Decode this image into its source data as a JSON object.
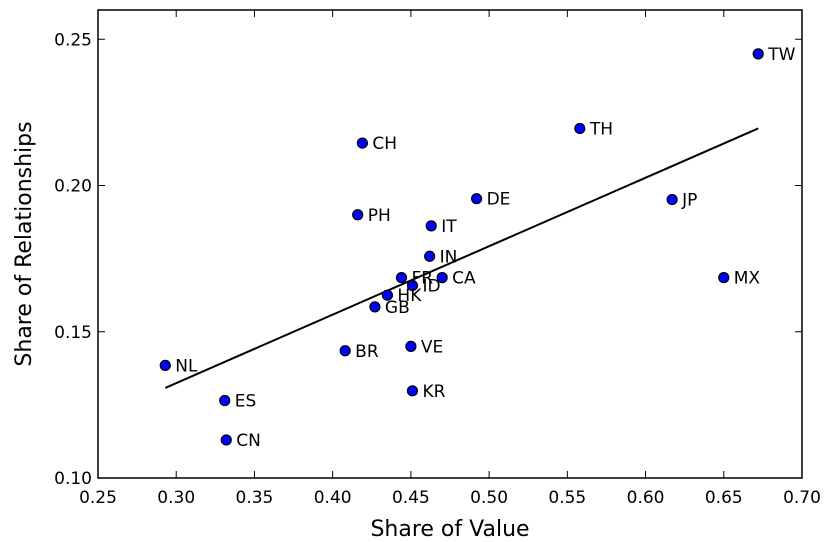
{
  "chart_data": {
    "type": "scatter",
    "xlabel": "Share of Value",
    "ylabel": "Share of Relationships",
    "xlim": [
      0.25,
      0.7
    ],
    "ylim": [
      0.1,
      0.26
    ],
    "xticks": [
      0.25,
      0.3,
      0.35,
      0.4,
      0.45,
      0.5,
      0.55,
      0.6,
      0.65,
      0.7
    ],
    "xtick_labels": [
      "0.25",
      "0.30",
      "0.35",
      "0.40",
      "0.45",
      "0.50",
      "0.55",
      "0.60",
      "0.65",
      "0.70"
    ],
    "yticks": [
      0.1,
      0.15,
      0.2,
      0.25
    ],
    "ytick_labels": [
      "0.10",
      "0.15",
      "0.20",
      "0.25"
    ],
    "grid": false,
    "marker_color": "#0000ff",
    "points": [
      {
        "label": "TW",
        "x": 0.672,
        "y": 0.245
      },
      {
        "label": "TH",
        "x": 0.558,
        "y": 0.2195
      },
      {
        "label": "CH",
        "x": 0.419,
        "y": 0.2145
      },
      {
        "label": "DE",
        "x": 0.492,
        "y": 0.1955
      },
      {
        "label": "JP",
        "x": 0.617,
        "y": 0.1952
      },
      {
        "label": "PH",
        "x": 0.416,
        "y": 0.19
      },
      {
        "label": "IT",
        "x": 0.463,
        "y": 0.1862
      },
      {
        "label": "IN",
        "x": 0.462,
        "y": 0.1758
      },
      {
        "label": "FR",
        "x": 0.444,
        "y": 0.1685
      },
      {
        "label": "CA",
        "x": 0.47,
        "y": 0.1685
      },
      {
        "label": "MX",
        "x": 0.65,
        "y": 0.1685
      },
      {
        "label": "ID",
        "x": 0.451,
        "y": 0.1658
      },
      {
        "label": "HK",
        "x": 0.435,
        "y": 0.1625
      },
      {
        "label": "GB",
        "x": 0.427,
        "y": 0.1585
      },
      {
        "label": "VE",
        "x": 0.45,
        "y": 0.145
      },
      {
        "label": "BR",
        "x": 0.408,
        "y": 0.1435
      },
      {
        "label": "NL",
        "x": 0.293,
        "y": 0.1385
      },
      {
        "label": "KR",
        "x": 0.451,
        "y": 0.1298
      },
      {
        "label": "ES",
        "x": 0.331,
        "y": 0.1265
      },
      {
        "label": "CN",
        "x": 0.332,
        "y": 0.113
      }
    ],
    "trendline": {
      "x": [
        0.293,
        0.672
      ],
      "y": [
        0.1308,
        0.2195
      ]
    }
  }
}
